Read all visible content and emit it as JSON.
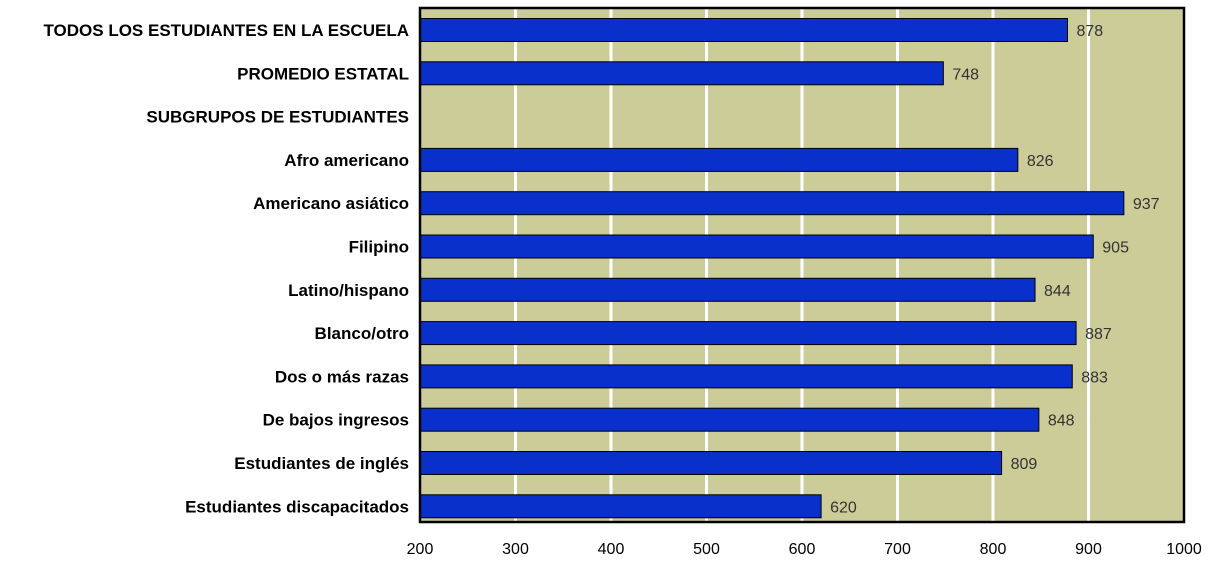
{
  "chart_data": {
    "type": "bar",
    "orientation": "horizontal",
    "title": "",
    "xlabel": "",
    "ylabel": "",
    "categories": [
      "TODOS LOS ESTUDIANTES EN LA ESCUELA",
      "PROMEDIO ESTATAL",
      "SUBGRUPOS DE ESTUDIANTES",
      "Afro americano",
      "Americano asiático",
      "Filipino",
      "Latino/hispano",
      "Blanco/otro",
      "Dos o más razas",
      "De bajos ingresos",
      "Estudiantes de inglés",
      "Estudiantes discapacitados"
    ],
    "values": [
      878,
      748,
      null,
      826,
      937,
      905,
      844,
      887,
      883,
      848,
      809,
      620
    ],
    "value_labels": [
      "878",
      "748",
      "",
      "826",
      "937",
      "905",
      "844",
      "887",
      "883",
      "848",
      "809",
      "620"
    ],
    "xlim": [
      200,
      1000
    ],
    "xticks": [
      200,
      300,
      400,
      500,
      600,
      700,
      800,
      900,
      1000
    ],
    "xtick_labels": [
      "200",
      "300",
      "400",
      "500",
      "600",
      "700",
      "800",
      "900",
      "1000"
    ],
    "grid": "vertical",
    "legend": "none",
    "colors": {
      "bar": "#0a30cc",
      "bar_edge": "#000000",
      "plot_background": "#cccc99",
      "gridline": "#ffffff",
      "axis": "#000000"
    }
  }
}
